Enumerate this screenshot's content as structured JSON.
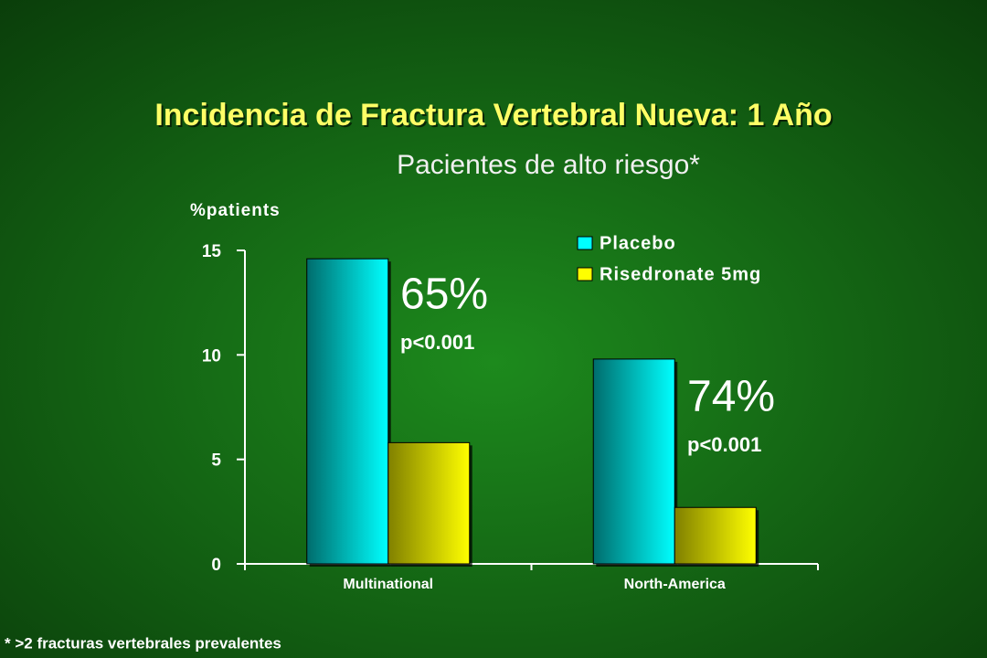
{
  "chart_data": {
    "type": "bar",
    "title": "Incidencia de Fractura Vertebral Nueva:  1 Año",
    "subtitle": "Pacientes de alto riesgo*",
    "y_label": "%patients",
    "categories": [
      "Multinational",
      "North-America"
    ],
    "series": [
      {
        "name": "Placebo",
        "color": "#00ffff",
        "values": [
          14.6,
          9.8
        ]
      },
      {
        "name": "Risedronate 5mg",
        "color": "#ffff00",
        "values": [
          5.8,
          2.7
        ]
      }
    ],
    "ylim": [
      0,
      15
    ],
    "yticks": [
      0,
      5,
      10,
      15
    ],
    "annotations": [
      "65%",
      "p<0.001",
      "74%",
      "p<0.001"
    ],
    "footnote": "* >2 fracturas vertebrales prevalentes"
  }
}
